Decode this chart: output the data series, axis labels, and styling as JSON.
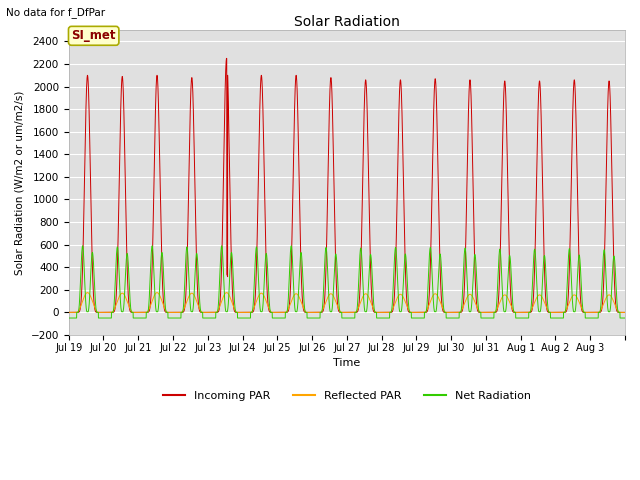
{
  "title": "Solar Radiation",
  "subtitle": "No data for f_DfPar",
  "ylabel": "Solar Radiation (W/m2 or um/m2/s)",
  "xlabel": "Time",
  "ylim": [
    -200,
    2500
  ],
  "yticks": [
    -200,
    0,
    200,
    400,
    600,
    800,
    1000,
    1200,
    1400,
    1600,
    1800,
    2000,
    2200,
    2400
  ],
  "num_days": 16,
  "day_labels": [
    "Jul 19",
    "Jul 20",
    "Jul 21",
    "Jul 22",
    "Jul 23",
    "Jul 24",
    "Jul 25",
    "Jul 26",
    "Jul 27",
    "Jul 28",
    "Jul 29",
    "Jul 30",
    "Jul 31",
    "Aug 1",
    "Aug 2",
    "Aug 3"
  ],
  "incoming_color": "#CC0000",
  "reflected_color": "#FFA500",
  "net_color": "#33CC00",
  "background_color": "#FFFFFF",
  "plot_bg_color": "#E0E0E0",
  "grid_color": "#FFFFFF",
  "legend_box_color": "#FFFFCC",
  "legend_box_edge": "#AAAA00",
  "incoming_peaks": [
    2100,
    2090,
    2100,
    2080,
    2250,
    2100,
    2100,
    2080,
    2060,
    2060,
    2070,
    2060,
    2050,
    2050,
    2060,
    2050
  ],
  "reflected_peaks": [
    175,
    170,
    175,
    170,
    175,
    170,
    165,
    165,
    165,
    160,
    165,
    160,
    155,
    155,
    155,
    155
  ],
  "net_peaks": [
    590,
    580,
    590,
    580,
    590,
    580,
    590,
    575,
    570,
    575,
    575,
    570,
    560,
    560,
    565,
    555
  ],
  "points_per_day": 1440,
  "total_days": 16,
  "dawn_hour": 5.5,
  "dusk_hour": 20.5,
  "peak_sharpness": 6
}
